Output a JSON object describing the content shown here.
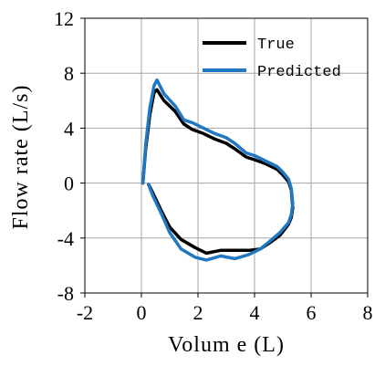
{
  "chart_data": {
    "type": "line",
    "xlabel": "Volum e (L)",
    "ylabel": "Flow rate (L/s)",
    "xlim": [
      -2,
      8
    ],
    "ylim": [
      -8,
      12
    ],
    "x_ticks": [
      -2,
      0,
      2,
      4,
      6,
      8
    ],
    "y_ticks": [
      -8,
      -4,
      0,
      4,
      8,
      12
    ],
    "x_tick_labels": [
      "-2",
      "0",
      "2",
      "4",
      "6",
      "8"
    ],
    "y_tick_labels": [
      "-8",
      "-4",
      "0",
      "4",
      "8",
      "12"
    ],
    "grid": true,
    "legend_position": "top-right",
    "series": [
      {
        "name": "True",
        "color": "#000000",
        "x": [
          0.05,
          0.15,
          0.3,
          0.45,
          0.55,
          0.8,
          1.2,
          1.5,
          1.8,
          2.2,
          2.6,
          3.0,
          3.3,
          3.7,
          4.0,
          4.4,
          4.8,
          5.0,
          5.2,
          5.3,
          5.35,
          5.3,
          5.2,
          4.9,
          4.5,
          4.2,
          3.8,
          3.3,
          2.8,
          2.3,
          1.9,
          1.4,
          1.0,
          0.7,
          0.4,
          0.25
        ],
        "y": [
          0.0,
          2.5,
          5.0,
          6.6,
          6.8,
          6.0,
          5.2,
          4.3,
          3.9,
          3.6,
          3.2,
          2.9,
          2.5,
          1.9,
          1.7,
          1.4,
          1.0,
          0.6,
          0.1,
          -0.5,
          -1.8,
          -2.5,
          -3.0,
          -3.8,
          -4.4,
          -4.8,
          -4.9,
          -4.9,
          -4.9,
          -5.1,
          -4.7,
          -4.1,
          -3.2,
          -2.0,
          -0.7,
          -0.1
        ]
      },
      {
        "name": "Predicted",
        "color": "#1f78c1",
        "x": [
          0.05,
          0.15,
          0.3,
          0.45,
          0.55,
          0.8,
          1.2,
          1.5,
          1.8,
          2.2,
          2.6,
          3.0,
          3.3,
          3.7,
          4.0,
          4.4,
          4.8,
          5.0,
          5.2,
          5.3,
          5.35,
          5.3,
          5.2,
          4.9,
          4.5,
          4.2,
          3.8,
          3.3,
          2.8,
          2.3,
          1.9,
          1.4,
          1.0,
          0.7,
          0.4,
          0.25
        ],
        "y": [
          0.0,
          2.8,
          5.5,
          7.1,
          7.5,
          6.5,
          5.6,
          4.6,
          4.4,
          4.0,
          3.6,
          3.3,
          2.9,
          2.2,
          2.0,
          1.6,
          1.2,
          0.8,
          0.3,
          -0.4,
          -1.5,
          -2.3,
          -2.9,
          -3.6,
          -4.3,
          -4.8,
          -5.2,
          -5.5,
          -5.3,
          -5.6,
          -5.4,
          -4.8,
          -3.6,
          -2.2,
          -0.9,
          -0.1
        ]
      }
    ]
  }
}
